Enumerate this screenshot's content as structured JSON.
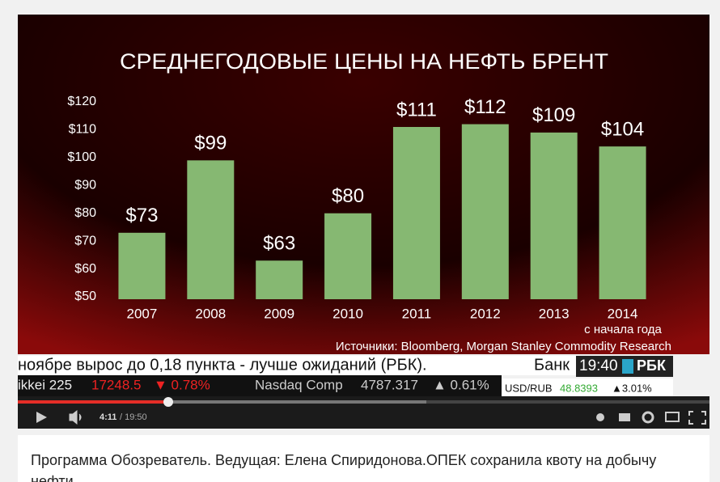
{
  "chart_data": {
    "type": "bar",
    "title": "СРЕДНЕГОДОВЫЕ ЦЕНЫ НА НЕФТЬ БРЕНТ",
    "categories": [
      "2007",
      "2008",
      "2009",
      "2010",
      "2011",
      "2012",
      "2013",
      "2014"
    ],
    "values": [
      73,
      99,
      63,
      80,
      111,
      112,
      109,
      104
    ],
    "value_labels": [
      "$73",
      "$99",
      "$63",
      "$80",
      "$111",
      "$112",
      "$109",
      "$104"
    ],
    "category_note": "с начала года",
    "source": "Источники: Bloomberg, Morgan Stanley Commodity Research",
    "color": "#86b872",
    "ylim": [
      50,
      120
    ],
    "yticks": [
      {
        "value": 120,
        "label": "$120"
      },
      {
        "value": 110,
        "label": "$110"
      },
      {
        "value": 100,
        "label": "$100"
      },
      {
        "value": 90,
        "label": "$90"
      },
      {
        "value": 80,
        "label": "$80"
      },
      {
        "value": 70,
        "label": "$70"
      },
      {
        "value": 60,
        "label": "$60"
      },
      {
        "value": 50,
        "label": "$50"
      }
    ]
  },
  "ticker": {
    "headline": "ноябре вырос до 0,18 пункта - лучше ожиданий (РБК).",
    "headline_tail": "Банк",
    "time": "19:40",
    "brand": "РБК",
    "quotes": [
      {
        "name": "ikkei 225",
        "value": "17248.5",
        "change": "▼ 0.78%"
      },
      {
        "name": "Nasdaq Comp",
        "value": "4787.317",
        "change": "▲ 0.61%"
      }
    ],
    "fx": {
      "name": "USD/RUB",
      "value": "48.8393",
      "change": "▲3.01%"
    }
  },
  "player": {
    "current_time": "4:11",
    "duration": "/ 19:50"
  },
  "caption": "Программа Обозреватель. Ведущая: Елена Спиридонова.ОПЕК сохранила квоту на добычу нефти"
}
